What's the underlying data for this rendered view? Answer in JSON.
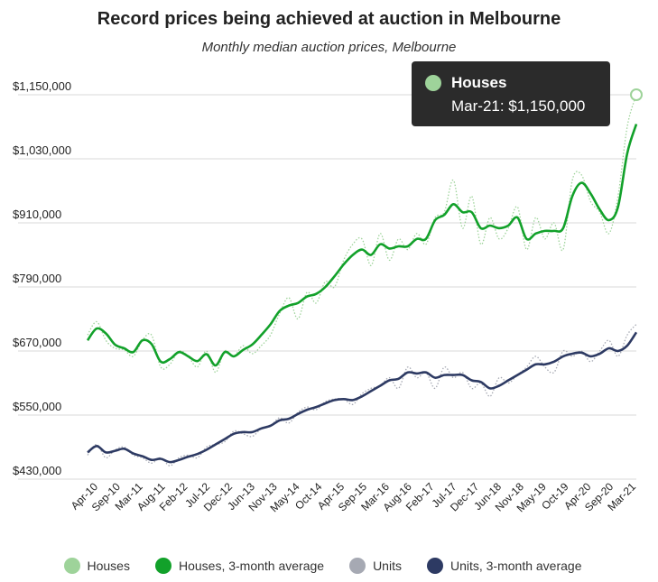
{
  "chart_data": {
    "type": "line",
    "title": "Record prices being achieved at auction in Melbourne",
    "subtitle": "Monthly median auction prices, Melbourne",
    "xlabel": "",
    "ylabel": "",
    "ylim": [
      430000,
      1150000
    ],
    "y_ticks": [
      "$1,150,000",
      "$1,030,000",
      "$910,000",
      "$790,000",
      "$670,000",
      "$550,000",
      "$430,000"
    ],
    "y_tick_values": [
      1150000,
      1030000,
      910000,
      790000,
      670000,
      550000,
      430000
    ],
    "x_ticks": [
      "Apr-10",
      "Sep-10",
      "Mar-11",
      "Aug-11",
      "Feb-12",
      "Jul-12",
      "Dec-12",
      "Jun-13",
      "Nov-13",
      "May-14",
      "Oct-14",
      "Apr-15",
      "Sep-15",
      "Mar-16",
      "Aug-16",
      "Feb-17",
      "Jul-17",
      "Dec-17",
      "Jun-18",
      "Nov-18",
      "May-19",
      "Oct-19",
      "Apr-20",
      "Sep-20",
      "Mar-21"
    ],
    "grid": "horizontal",
    "legend_position": "bottom",
    "series": [
      {
        "name": "Houses",
        "color": "#9ed39a",
        "style": "dotted",
        "values": [
          700000,
          725000,
          690000,
          675000,
          672000,
          660000,
          690000,
          700000,
          640000,
          645000,
          670000,
          660000,
          640000,
          670000,
          630000,
          670000,
          660000,
          680000,
          665000,
          680000,
          700000,
          740000,
          770000,
          730000,
          780000,
          760000,
          800000,
          790000,
          840000,
          870000,
          880000,
          830000,
          890000,
          840000,
          880000,
          860000,
          890000,
          870000,
          920000,
          930000,
          990000,
          900000,
          960000,
          870000,
          920000,
          880000,
          900000,
          940000,
          860000,
          920000,
          880000,
          910000,
          860000,
          990000,
          1000000,
          950000,
          930000,
          890000,
          960000,
          1090000,
          1150000
        ]
      },
      {
        "name": "Houses, 3-month average",
        "color": "#12a12a",
        "style": "solid",
        "values": [
          690000,
          712000,
          703000,
          682000,
          675000,
          668000,
          690000,
          683000,
          650000,
          655000,
          668000,
          660000,
          651000,
          664000,
          643000,
          668000,
          660000,
          672000,
          682000,
          700000,
          720000,
          745000,
          755000,
          760000,
          772000,
          777000,
          790000,
          810000,
          832000,
          850000,
          860000,
          850000,
          870000,
          862000,
          866000,
          866000,
          880000,
          880000,
          915000,
          925000,
          945000,
          930000,
          930000,
          900000,
          905000,
          900000,
          905000,
          920000,
          880000,
          890000,
          895000,
          895000,
          900000,
          960000,
          985000,
          965000,
          935000,
          915000,
          940000,
          1040000,
          1095000
        ]
      },
      {
        "name": "Units",
        "color": "#a6a9b3",
        "style": "dotted",
        "values": [
          475000,
          495000,
          470000,
          485000,
          490000,
          475000,
          470000,
          460000,
          470000,
          455000,
          470000,
          475000,
          470000,
          490000,
          495000,
          500000,
          520000,
          515000,
          510000,
          525000,
          530000,
          545000,
          535000,
          555000,
          565000,
          560000,
          575000,
          580000,
          580000,
          570000,
          590000,
          600000,
          605000,
          620000,
          600000,
          640000,
          620000,
          630000,
          600000,
          640000,
          620000,
          630000,
          600000,
          610000,
          585000,
          620000,
          610000,
          625000,
          640000,
          660000,
          640000,
          630000,
          670000,
          660000,
          670000,
          650000,
          670000,
          690000,
          660000,
          700000,
          720000
        ]
      },
      {
        "name": "Units, 3-month average",
        "color": "#2d3a63",
        "style": "solid",
        "values": [
          480000,
          492000,
          480000,
          483000,
          487000,
          478000,
          473000,
          466000,
          468000,
          462000,
          466000,
          472000,
          477000,
          485000,
          495000,
          505000,
          515000,
          518000,
          518000,
          525000,
          530000,
          540000,
          543000,
          552000,
          560000,
          565000,
          572000,
          578000,
          580000,
          578000,
          585000,
          595000,
          605000,
          615000,
          618000,
          630000,
          628000,
          630000,
          620000,
          625000,
          625000,
          625000,
          615000,
          612000,
          600000,
          605000,
          615000,
          625000,
          635000,
          645000,
          645000,
          650000,
          660000,
          665000,
          667000,
          660000,
          665000,
          675000,
          670000,
          680000,
          705000
        ]
      }
    ]
  },
  "tooltip": {
    "series": "Houses",
    "label": "Mar-21: $1,150,000",
    "point": {
      "x_index": 60,
      "y": 1150000
    }
  },
  "legend": [
    {
      "label": "Houses",
      "color": "#9ed39a"
    },
    {
      "label": "Houses, 3-month average",
      "color": "#12a12a"
    },
    {
      "label": "Units",
      "color": "#a6a9b3"
    },
    {
      "label": "Units, 3-month average",
      "color": "#2d3a63"
    }
  ]
}
